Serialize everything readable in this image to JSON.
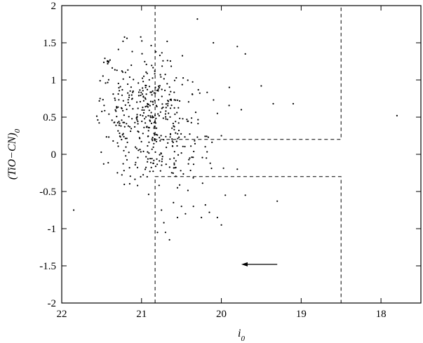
{
  "chart_data": {
    "type": "scatter",
    "xlabel": "i0",
    "ylabel": "(TiO−CN)0",
    "xlim": [
      22,
      17.5
    ],
    "ylim": [
      -2,
      2
    ],
    "x_ticks": [
      22,
      21,
      20,
      19,
      18
    ],
    "x_tick_labels": [
      "22",
      "21",
      "20",
      "19",
      "18"
    ],
    "y_ticks": [
      -2,
      -1.5,
      -1,
      -0.5,
      0,
      0.5,
      1,
      1.5,
      2
    ],
    "y_tick_labels": [
      "-2",
      "-1.5",
      "-1",
      "-0.5",
      "0",
      "0.5",
      "1",
      "1.5",
      "2"
    ],
    "x_axis_reversed": true,
    "grid": false,
    "legend": "none",
    "regions": [
      {
        "name": "upper",
        "points": [
          [
            20.83,
            2
          ],
          [
            20.83,
            0.2
          ],
          [
            18.5,
            0.2
          ],
          [
            18.5,
            2
          ]
        ]
      },
      {
        "name": "lower",
        "points": [
          [
            20.83,
            -2
          ],
          [
            20.83,
            -0.3
          ],
          [
            18.5,
            -0.3
          ],
          [
            18.5,
            -2
          ]
        ]
      }
    ],
    "arrow": {
      "from": [
        19.3,
        -1.48
      ],
      "to": [
        19.75,
        -1.48
      ]
    },
    "cluster": {
      "count": 470,
      "x_center": 20.9,
      "x_spread": 0.35,
      "x_min": 21.6,
      "x_max": 19.9,
      "y_center": 0.45,
      "y_spread": 0.45,
      "y_min": -0.55,
      "y_max": 1.6
    },
    "points": [
      [
        21.85,
        -0.75
      ],
      [
        20.3,
        1.82
      ],
      [
        20.1,
        1.5
      ],
      [
        19.8,
        1.45
      ],
      [
        19.7,
        1.35
      ],
      [
        19.5,
        0.92
      ],
      [
        19.35,
        0.68
      ],
      [
        19.1,
        0.68
      ],
      [
        17.8,
        0.52
      ],
      [
        20.05,
        0.55
      ],
      [
        19.9,
        0.9
      ],
      [
        19.75,
        0.6
      ],
      [
        20.0,
        0.25
      ],
      [
        19.8,
        -0.2
      ],
      [
        20.55,
        -0.45
      ],
      [
        19.95,
        -0.55
      ],
      [
        19.7,
        -0.55
      ],
      [
        19.3,
        -0.63
      ],
      [
        20.05,
        -0.85
      ],
      [
        20.6,
        -0.65
      ],
      [
        20.35,
        -0.7
      ],
      [
        20.5,
        -0.7
      ],
      [
        20.2,
        -0.68
      ],
      [
        20.75,
        -0.75
      ],
      [
        20.8,
        -1.05
      ],
      [
        20.7,
        -1.05
      ],
      [
        20.45,
        -0.8
      ],
      [
        20.25,
        -0.85
      ],
      [
        20.15,
        -0.78
      ],
      [
        20.0,
        -0.95
      ],
      [
        20.65,
        -1.15
      ],
      [
        20.72,
        -0.92
      ],
      [
        21.05,
        -0.42
      ],
      [
        20.55,
        -0.85
      ]
    ]
  }
}
